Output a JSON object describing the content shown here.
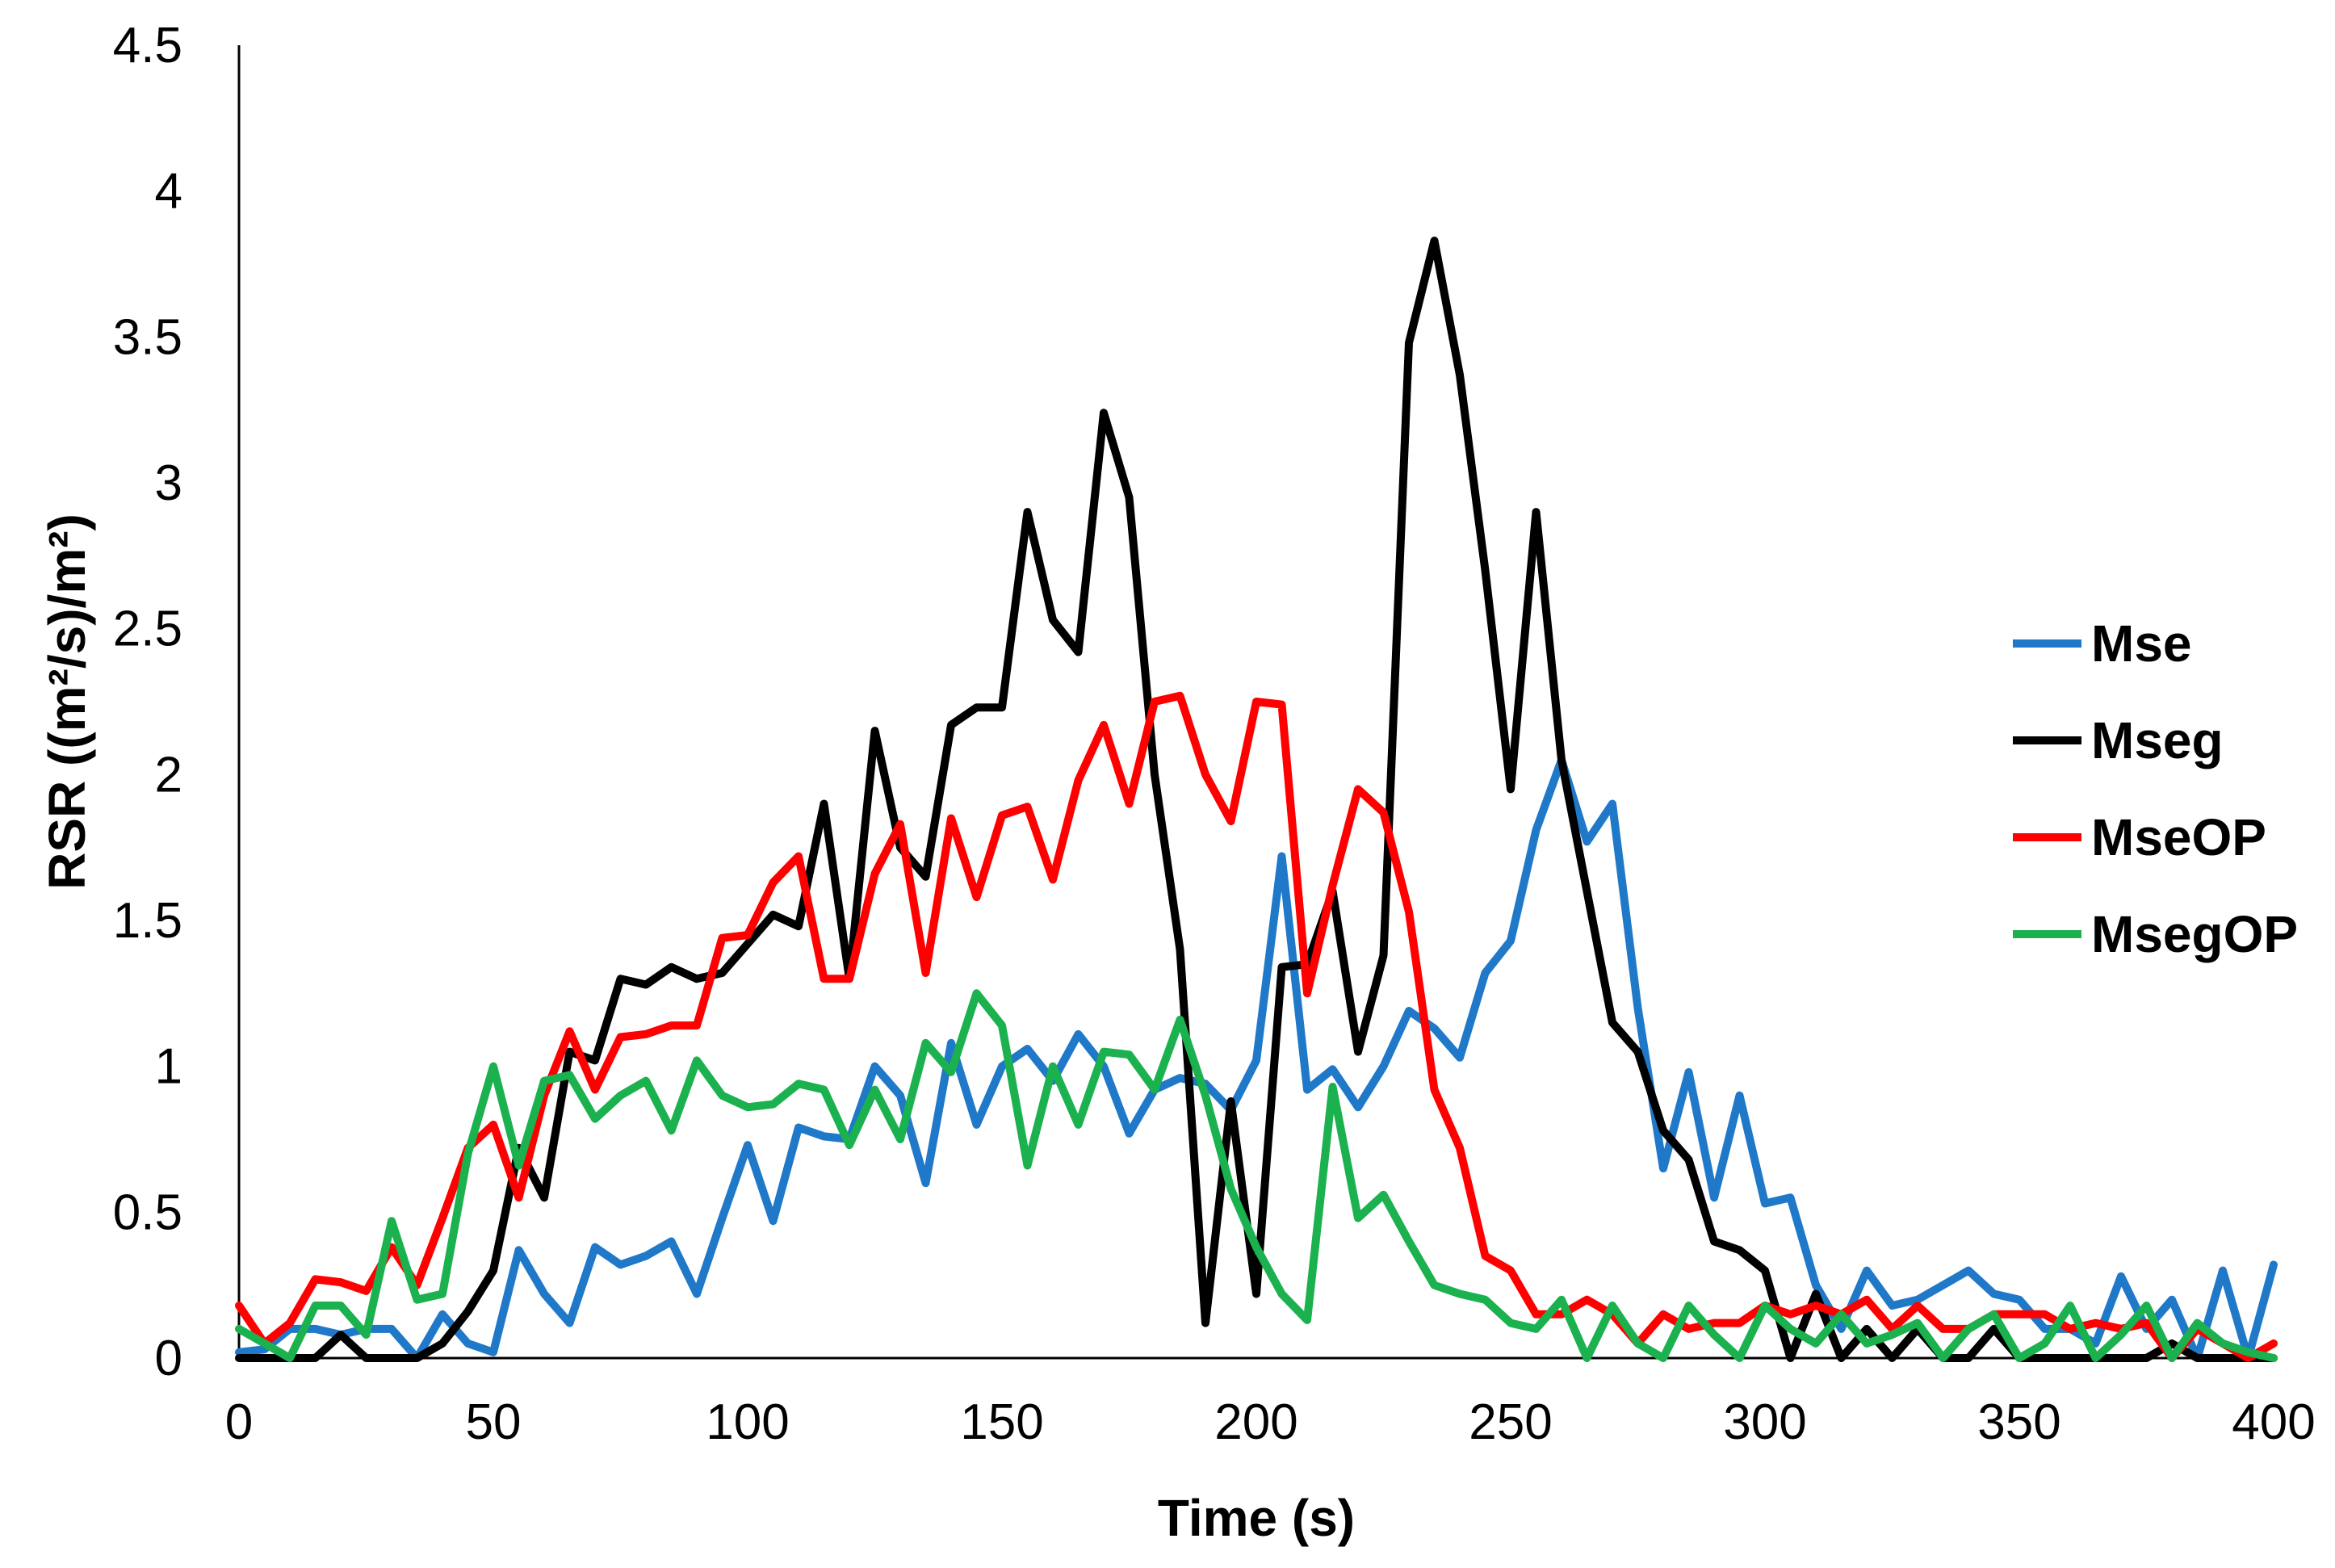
{
  "chart_data": {
    "type": "line",
    "title": "",
    "xlabel": "Time (s)",
    "ylabel": "RSR ((m²/s)/m²)",
    "xlim": [
      0,
      400
    ],
    "ylim": [
      0,
      4.5
    ],
    "grid": false,
    "legend_position": "right",
    "x_ticks": [
      "0",
      "50",
      "100",
      "150",
      "200",
      "250",
      "300",
      "350",
      "400"
    ],
    "y_ticks": [
      "0",
      "0.5",
      "1",
      "1.5",
      "2",
      "2.5",
      "3",
      "3.5",
      "4",
      "4.5"
    ],
    "x": [
      0,
      5,
      10,
      15,
      20,
      25,
      30,
      35,
      40,
      45,
      50,
      55,
      60,
      65,
      70,
      75,
      80,
      85,
      90,
      95,
      100,
      105,
      110,
      115,
      120,
      125,
      130,
      135,
      140,
      145,
      150,
      155,
      160,
      165,
      170,
      175,
      180,
      185,
      190,
      195,
      200,
      205,
      210,
      215,
      220,
      225,
      230,
      235,
      240,
      245,
      250,
      255,
      260,
      265,
      270,
      275,
      280,
      285,
      290,
      295,
      300,
      305,
      310,
      315,
      320,
      325,
      330,
      335,
      340,
      345,
      350,
      355,
      360,
      365,
      370,
      375,
      380,
      385,
      390,
      395,
      400
    ],
    "series": [
      {
        "name": "Mse",
        "color": "#1F78C8",
        "values": [
          0.02,
          0.03,
          0.1,
          0.1,
          0.08,
          0.1,
          0.1,
          0.0,
          0.15,
          0.05,
          0.02,
          0.37,
          0.22,
          0.12,
          0.38,
          0.32,
          0.35,
          0.4,
          0.22,
          0.48,
          0.73,
          0.47,
          0.79,
          0.76,
          0.75,
          1.0,
          0.9,
          0.6,
          1.08,
          0.8,
          1.0,
          1.06,
          0.95,
          1.11,
          1.0,
          0.77,
          0.92,
          0.96,
          0.94,
          0.85,
          1.02,
          1.72,
          0.92,
          0.99,
          0.86,
          1.0,
          1.19,
          1.13,
          1.03,
          1.32,
          1.43,
          1.81,
          2.05,
          1.77,
          1.9,
          1.2,
          0.65,
          0.98,
          0.55,
          0.9,
          0.53,
          0.55,
          0.25,
          0.1,
          0.3,
          0.18,
          0.2,
          0.25,
          0.3,
          0.22,
          0.2,
          0.1,
          0.1,
          0.05,
          0.28,
          0.1,
          0.2,
          0.0,
          0.3,
          0.0,
          0.32
        ]
      },
      {
        "name": "Mseg",
        "color": "#000000",
        "values": [
          0.0,
          0.0,
          0.0,
          0.0,
          0.08,
          0.0,
          0.0,
          0.0,
          0.05,
          0.16,
          0.3,
          0.72,
          0.55,
          1.05,
          1.02,
          1.3,
          1.28,
          1.34,
          1.3,
          1.32,
          1.42,
          1.52,
          1.48,
          1.9,
          1.3,
          2.15,
          1.75,
          1.65,
          2.17,
          2.23,
          2.23,
          2.9,
          2.53,
          2.42,
          3.24,
          2.95,
          2.0,
          1.4,
          0.12,
          0.88,
          0.22,
          1.34,
          1.35,
          1.6,
          1.05,
          1.38,
          3.48,
          3.83,
          3.37,
          2.7,
          1.95,
          2.9,
          2.05,
          1.6,
          1.15,
          1.05,
          0.78,
          0.68,
          0.4,
          0.37,
          0.3,
          0.0,
          0.22,
          0.0,
          0.1,
          0.0,
          0.1,
          0.0,
          0.0,
          0.1,
          0.0,
          0.0,
          0.0,
          0.0,
          0.0,
          0.0,
          0.05,
          0.0,
          0.0,
          0.0,
          0.0
        ]
      },
      {
        "name": "MseOP",
        "color": "#FF0000",
        "values": [
          0.18,
          0.05,
          0.12,
          0.27,
          0.26,
          0.23,
          0.38,
          0.25,
          0.48,
          0.72,
          0.8,
          0.55,
          0.9,
          1.12,
          0.92,
          1.1,
          1.11,
          1.14,
          1.14,
          1.44,
          1.45,
          1.63,
          1.72,
          1.3,
          1.3,
          1.66,
          1.83,
          1.32,
          1.85,
          1.58,
          1.86,
          1.89,
          1.64,
          1.98,
          2.17,
          1.9,
          2.25,
          2.27,
          2.0,
          1.84,
          2.25,
          2.24,
          1.25,
          1.62,
          1.95,
          1.87,
          1.53,
          0.92,
          0.72,
          0.35,
          0.3,
          0.15,
          0.15,
          0.2,
          0.15,
          0.05,
          0.15,
          0.1,
          0.12,
          0.12,
          0.18,
          0.15,
          0.18,
          0.15,
          0.2,
          0.1,
          0.18,
          0.1,
          0.1,
          0.15,
          0.15,
          0.15,
          0.1,
          0.12,
          0.1,
          0.12,
          0.0,
          0.1,
          0.05,
          0.0,
          0.05
        ]
      },
      {
        "name": "MsegOP",
        "color": "#1BB14E",
        "values": [
          0.1,
          0.05,
          0.0,
          0.18,
          0.18,
          0.08,
          0.47,
          0.2,
          0.22,
          0.7,
          1.0,
          0.66,
          0.95,
          0.97,
          0.82,
          0.9,
          0.95,
          0.78,
          1.02,
          0.9,
          0.86,
          0.87,
          0.94,
          0.92,
          0.73,
          0.92,
          0.75,
          1.08,
          0.98,
          1.25,
          1.14,
          0.66,
          1.0,
          0.8,
          1.05,
          1.04,
          0.92,
          1.16,
          0.9,
          0.58,
          0.38,
          0.22,
          0.13,
          0.93,
          0.48,
          0.56,
          0.4,
          0.25,
          0.22,
          0.2,
          0.12,
          0.1,
          0.2,
          0.0,
          0.18,
          0.05,
          0.0,
          0.18,
          0.08,
          0.0,
          0.18,
          0.1,
          0.05,
          0.15,
          0.05,
          0.08,
          0.12,
          0.0,
          0.1,
          0.15,
          0.0,
          0.05,
          0.18,
          0.0,
          0.08,
          0.18,
          0.0,
          0.12,
          0.05,
          0.02,
          0.0
        ]
      }
    ]
  }
}
